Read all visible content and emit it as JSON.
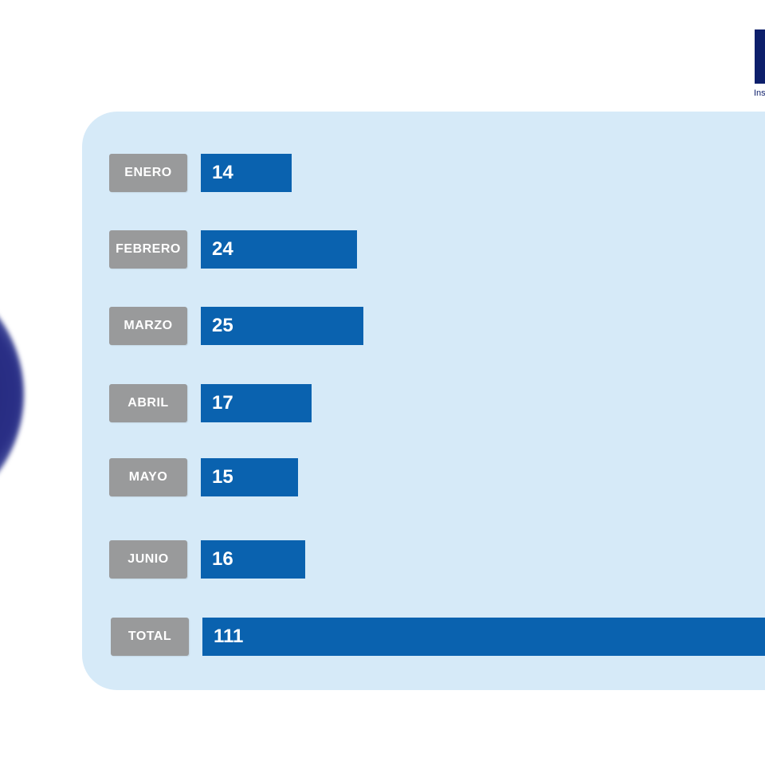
{
  "logo": {
    "caption": "Ins"
  },
  "colors": {
    "panel": "#d6eaf8",
    "bar": "#0a62af",
    "label_bg": "#999a9b",
    "label_text": "#ffffff",
    "logo": "#0d1f6b"
  },
  "chart_data": {
    "type": "bar",
    "orientation": "horizontal",
    "categories": [
      "ENERO",
      "FEBRERO",
      "MARZO",
      "ABRIL",
      "MAYO",
      "JUNIO",
      "TOTAL"
    ],
    "values": [
      14,
      24,
      25,
      17,
      15,
      16,
      111
    ],
    "value_labels": [
      "14",
      "24",
      "25",
      "17",
      "15",
      "16",
      "111"
    ],
    "title": "",
    "xlabel": "",
    "ylabel": "",
    "grid": false,
    "legend": "none"
  }
}
